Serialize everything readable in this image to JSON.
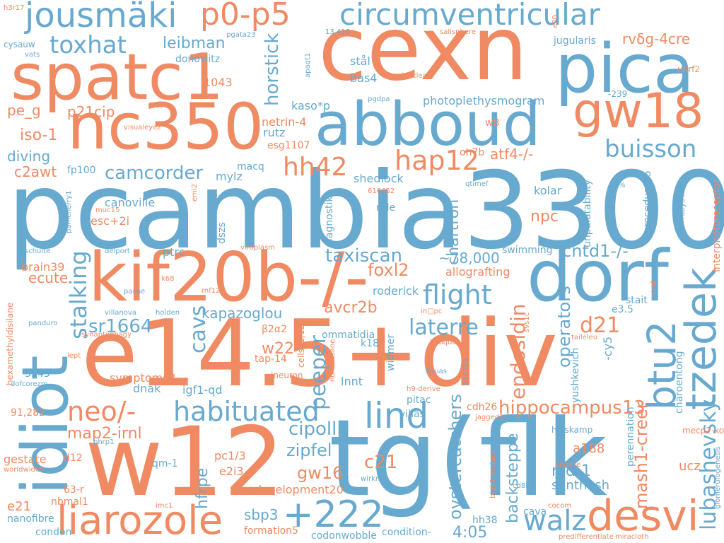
{
  "words": [
    {
      "text": "pcambia3300",
      "color": "#67a9cf"
    },
    {
      "text": "e14.5+div",
      "color": "#ef8a62"
    },
    {
      "text": "tg(flk",
      "color": "#67a9cf"
    },
    {
      "text": "w12",
      "color": "#ef8a62"
    },
    {
      "text": "cexn",
      "color": "#ef8a62"
    },
    {
      "text": "kif20b-/-",
      "color": "#ef8a62"
    },
    {
      "text": "dorf",
      "color": "#67a9cf"
    },
    {
      "text": "pica",
      "color": "#67a9cf"
    },
    {
      "text": "spatc1",
      "color": "#ef8a62"
    },
    {
      "text": "nc350",
      "color": "#ef8a62"
    },
    {
      "text": "abboud",
      "color": "#67a9cf"
    },
    {
      "text": "idiot",
      "color": "#67a9cf"
    },
    {
      "text": "gw18",
      "color": "#ef8a62"
    },
    {
      "text": "tzedek",
      "color": "#67a9cf"
    },
    {
      "text": "desvi",
      "color": "#ef8a62"
    },
    {
      "text": "liarozole",
      "color": "#ef8a62"
    },
    {
      "text": "btu2",
      "color": "#67a9cf"
    },
    {
      "text": "+222",
      "color": "#67a9cf"
    },
    {
      "text": "lind",
      "color": "#67a9cf"
    },
    {
      "text": "jousmäki",
      "color": "#67a9cf"
    },
    {
      "text": "p0-p5",
      "color": "#ef8a62"
    },
    {
      "text": "circumventricular",
      "color": "#67a9cf"
    },
    {
      "text": "neo/-",
      "color": "#ef8a62"
    },
    {
      "text": "habituated",
      "color": "#67a9cf"
    },
    {
      "text": "flight",
      "color": "#67a9cf"
    },
    {
      "text": "walz",
      "color": "#67a9cf"
    },
    {
      "text": "buisson",
      "color": "#67a9cf"
    },
    {
      "text": "hap12",
      "color": "#ef8a62"
    },
    {
      "text": "hh42",
      "color": "#ef8a62"
    },
    {
      "text": "toxhat",
      "color": "#67a9cf"
    },
    {
      "text": "lubashevsky",
      "color": "#67a9cf"
    },
    {
      "text": "stalking",
      "color": "#67a9cf"
    },
    {
      "text": "cavs",
      "color": "#67a9cf"
    },
    {
      "text": "laterre",
      "color": "#67a9cf"
    },
    {
      "text": "d21",
      "color": "#ef8a62"
    },
    {
      "text": "peeper",
      "color": "#67a9cf"
    },
    {
      "text": "endosidin",
      "color": "#ef8a62"
    },
    {
      "text": "camcorder",
      "color": "#67a9cf"
    },
    {
      "text": "sr1664",
      "color": "#67a9cf"
    },
    {
      "text": "cipolli",
      "color": "#67a9cf"
    },
    {
      "text": "taxiscan",
      "color": "#67a9cf"
    },
    {
      "text": "hippocampus13",
      "color": "#ef8a62"
    },
    {
      "text": "c21",
      "color": "#ef8a62"
    },
    {
      "text": "horstick",
      "color": "#67a9cf"
    },
    {
      "text": "gw16",
      "color": "#ef8a62"
    },
    {
      "text": "zipfel",
      "color": "#67a9cf"
    },
    {
      "text": "foxl2",
      "color": "#ef8a62"
    },
    {
      "text": "cntd1-/-",
      "color": "#67a9cf"
    },
    {
      "text": "operators",
      "color": "#67a9cf"
    },
    {
      "text": "mash1-creer",
      "color": "#ef8a62"
    },
    {
      "text": "oystercatchers",
      "color": "#67a9cf"
    },
    {
      "text": "map2-irnl",
      "color": "#ef8a62"
    },
    {
      "text": "backsteppe",
      "color": "#67a9cf"
    },
    {
      "text": "4:05",
      "color": "#67a9cf"
    },
    {
      "text": "leibman",
      "color": "#67a9cf"
    },
    {
      "text": "avcr2b",
      "color": "#ef8a62"
    },
    {
      "text": "w22",
      "color": "#ef8a62"
    },
    {
      "text": "npc",
      "color": "#ef8a62"
    },
    {
      "text": "nid-1",
      "color": "#67a9cf"
    },
    {
      "text": "hfrpe",
      "color": "#67a9cf"
    },
    {
      "text": "chartron",
      "color": "#67a9cf"
    },
    {
      "text": "iso-1",
      "color": "#ef8a62"
    },
    {
      "text": "kapazoglou",
      "color": "#67a9cf"
    },
    {
      "text": "~78,000",
      "color": "#67a9cf"
    },
    {
      "text": "ecute",
      "color": "#ef8a62"
    },
    {
      "text": "diving",
      "color": "#67a9cf"
    },
    {
      "text": "pe_g",
      "color": "#ef8a62"
    },
    {
      "text": "p21cip",
      "color": "#ef8a62"
    },
    {
      "text": "c2awt",
      "color": "#ef8a62"
    },
    {
      "text": "atf4-/-",
      "color": "#ef8a62"
    },
    {
      "text": "rvδg-4cre",
      "color": "#ef8a62"
    },
    {
      "text": "sbp3",
      "color": "#67a9cf"
    },
    {
      "text": "e21",
      "color": "#ef8a62"
    },
    {
      "text": "santhosh",
      "color": "#67a9cf"
    },
    {
      "text": "a188",
      "color": "#ef8a62"
    },
    {
      "text": "ucz",
      "color": "#ef8a62"
    },
    {
      "text": "development20",
      "color": "#ef8a62"
    },
    {
      "text": "pc1/3",
      "color": "#ef8a62"
    },
    {
      "text": "e2i3",
      "color": "#ef8a62"
    },
    {
      "text": "igf1-qd",
      "color": "#67a9cf"
    },
    {
      "text": "symptoms3",
      "color": "#ef8a62"
    },
    {
      "text": "dnak",
      "color": "#67a9cf"
    },
    {
      "text": "fp100",
      "color": "#67a9cf"
    },
    {
      "text": "canoville",
      "color": "#67a9cf"
    },
    {
      "text": "esc+2i",
      "color": "#ef8a62"
    },
    {
      "text": "ptrc",
      "color": "#67a9cf"
    },
    {
      "text": "brain39",
      "color": "#ef8a62"
    },
    {
      "text": "mylz",
      "color": "#67a9cf"
    },
    {
      "text": "macq",
      "color": "#67a9cf"
    },
    {
      "text": "rutz",
      "color": "#67a9cf"
    },
    {
      "text": "netrin-4",
      "color": "#ef8a62"
    },
    {
      "text": "esg1107",
      "color": "#ef8a62"
    },
    {
      "text": "kaso*p",
      "color": "#67a9cf"
    },
    {
      "text": "1043",
      "color": "#ef8a62"
    },
    {
      "text": "donowitz",
      "color": "#67a9cf"
    },
    {
      "text": "bas4",
      "color": "#67a9cf"
    },
    {
      "text": "stål",
      "color": "#67a9cf"
    },
    {
      "text": "photoplethysmogram",
      "color": "#67a9cf"
    },
    {
      "text": "w8",
      "color": "#ef8a62"
    },
    {
      "text": "oh7b",
      "color": "#ef8a62"
    },
    {
      "text": "shedlock",
      "color": "#67a9cf"
    },
    {
      "text": "ride",
      "color": "#67a9cf"
    },
    {
      "text": "kolar",
      "color": "#67a9cf"
    },
    {
      "text": "swimming",
      "color": "#67a9cf"
    },
    {
      "text": "allografting",
      "color": "#ef8a62"
    },
    {
      "text": "roderick",
      "color": "#67a9cf"
    },
    {
      "text": "jugularis",
      "color": "#67a9cf"
    },
    {
      "text": "procedure45",
      "color": "#67a9cf"
    },
    {
      "text": "unpalatability",
      "color": "#67a9cf"
    },
    {
      "text": "interphotoreceptor",
      "color": "#ef8a62"
    },
    {
      "text": "ommatidia",
      "color": "#67a9cf"
    },
    {
      "text": "k18",
      "color": "#67a9cf"
    },
    {
      "text": "widmer",
      "color": "#67a9cf"
    },
    {
      "text": "lnnt",
      "color": "#67a9cf"
    },
    {
      "text": "pitac",
      "color": "#67a9cf"
    },
    {
      "text": "villas",
      "color": "#67a9cf"
    },
    {
      "text": "cdh26",
      "color": "#ef8a62"
    },
    {
      "text": "codonwobble",
      "color": "#67a9cf"
    },
    {
      "text": "condition-",
      "color": "#67a9cf"
    },
    {
      "text": "hh38",
      "color": "#67a9cf"
    },
    {
      "text": "cava",
      "color": "#67a9cf"
    },
    {
      "text": "condon",
      "color": "#67a9cf"
    },
    {
      "text": "nanofibre",
      "color": "#67a9cf"
    },
    {
      "text": "63-r",
      "color": "#ef8a62"
    },
    {
      "text": "nbmal1",
      "color": "#ef8a62"
    },
    {
      "text": "d12",
      "color": "#ef8a62"
    },
    {
      "text": "gestate",
      "color": "#ef8a62"
    },
    {
      "text": "91,282",
      "color": "#ef8a62"
    },
    {
      "text": "5543",
      "color": "#67a9cf"
    },
    {
      "text": "qm-1",
      "color": "#67a9cf"
    },
    {
      "text": "dszs",
      "color": "#67a9cf"
    },
    {
      "text": "diagnostik",
      "color": "#67a9cf"
    },
    {
      "text": "formation5",
      "color": "#ef8a62"
    },
    {
      "text": "e3.5",
      "color": "#67a9cf"
    },
    {
      "text": "stait",
      "color": "#67a9cf"
    },
    {
      "text": "-cy5",
      "color": "#67a9cf"
    },
    {
      "text": "yushkevich",
      "color": "#67a9cf"
    },
    {
      "text": "perennation",
      "color": "#67a9cf"
    },
    {
      "text": "charoentong",
      "color": "#67a9cf"
    },
    {
      "text": "hulskamp",
      "color": "#67a9cf"
    },
    {
      "text": "mecp2-ko",
      "color": "#ef8a62"
    },
    {
      "text": "-239",
      "color": "#67a9cf"
    },
    {
      "text": "uhrf2",
      "color": "#ef8a62"
    },
    {
      "text": "β2α2",
      "color": "#ef8a62"
    },
    {
      "text": "tap-14",
      "color": "#ef8a62"
    },
    {
      "text": "cells11,12",
      "color": "#ef8a62"
    },
    {
      "text": "ineuron",
      "color": "#ef8a62"
    },
    {
      "text": "ruby3-mb",
      "color": "#67a9cf"
    },
    {
      "text": "fd%",
      "color": "#67a9cf"
    },
    {
      "text": "h3r17",
      "color": "#ef8a62"
    },
    {
      "text": "cysauw",
      "color": "#67a9cf"
    },
    {
      "text": "vats",
      "color": "#67a9cf"
    },
    {
      "text": "pgata23",
      "color": "#67a9cf"
    },
    {
      "text": "13,416",
      "color": "#67a9cf"
    },
    {
      "text": "salisphere",
      "color": "#ef8a62"
    },
    {
      "text": "e20",
      "color": "#ef8a62"
    },
    {
      "text": "apaqt1",
      "color": "#67a9cf"
    },
    {
      "text": "uninucleate",
      "color": "#ef8a62"
    },
    {
      "text": "pgdpa",
      "color": "#67a9cf"
    },
    {
      "text": "7,270",
      "color": "#ef8a62"
    },
    {
      "text": "visualeyez",
      "color": "#ef8a62"
    },
    {
      "text": "pamcherry1",
      "color": "#67a9cf"
    },
    {
      "text": "emi2",
      "color": "#ef8a62"
    },
    {
      "text": "muc15",
      "color": "#ef8a62"
    },
    {
      "text": "616452",
      "color": "#ef8a62"
    },
    {
      "text": "qtimef",
      "color": "#67a9cf"
    },
    {
      "text": "schulte",
      "color": "#67a9cf"
    },
    {
      "text": "delport",
      "color": "#67a9cf"
    },
    {
      "text": "viroplasm",
      "color": "#ef8a62"
    },
    {
      "text": "k68",
      "color": "#ef8a62"
    },
    {
      "text": "pause",
      "color": "#67a9cf"
    },
    {
      "text": "rnf12",
      "color": "#ef8a62"
    },
    {
      "text": "villanova",
      "color": "#67a9cf"
    },
    {
      "text": "holden",
      "color": "#67a9cf"
    },
    {
      "text": "panduro",
      "color": "#67a9cf"
    },
    {
      "text": "synaptophagy",
      "color": "#ef8a62"
    },
    {
      "text": "lept",
      "color": "#ef8a62"
    },
    {
      "text": "hexamethyldisilane",
      "color": "#ef8a62"
    },
    {
      "text": "dofcorezm",
      "color": "#67a9cf"
    },
    {
      "text": "worldwide5",
      "color": "#ef8a62"
    },
    {
      "text": "phrp1",
      "color": "#67a9cf"
    },
    {
      "text": "imc1",
      "color": "#ef8a62"
    },
    {
      "text": "in□pc",
      "color": "#ef8a62"
    },
    {
      "text": "svs1c",
      "color": "#ef8a62"
    },
    {
      "text": "bouquet",
      "color": "#ef8a62"
    },
    {
      "text": "nonacosane",
      "color": "#ef8a62"
    },
    {
      "text": "5xuas",
      "color": "#67a9cf"
    },
    {
      "text": "576755",
      "color": "#67a9cf"
    },
    {
      "text": "h9-derive",
      "color": "#ef8a62"
    },
    {
      "text": "jagged2",
      "color": "#ef8a62"
    },
    {
      "text": "taileleu",
      "color": "#ef8a62"
    },
    {
      "text": "nbaf",
      "color": "#ef8a62"
    },
    {
      "text": "engase",
      "color": "#ef8a62"
    },
    {
      "text": "glomerulogenesis",
      "color": "#67a9cf"
    },
    {
      "text": "cd8b",
      "color": "#67a9cf"
    },
    {
      "text": "bigh1-mutant",
      "color": "#ef8a62"
    },
    {
      "text": "wirkner",
      "color": "#67a9cf"
    },
    {
      "text": "cocom",
      "color": "#ef8a62"
    },
    {
      "text": "miracloth",
      "color": "#ef8a62"
    },
    {
      "text": "predifferentiate",
      "color": "#ef8a62"
    }
  ]
}
